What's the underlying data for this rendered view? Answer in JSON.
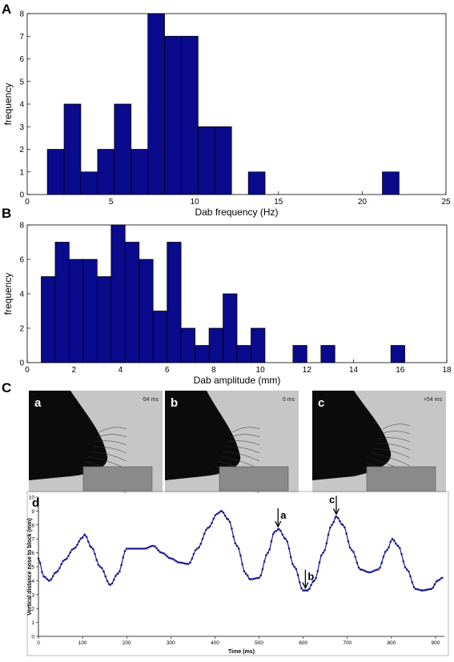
{
  "panels": {
    "A": "A",
    "B": "B",
    "C": "C",
    "d": "d"
  },
  "colors": {
    "bar": "#0a0a8c",
    "bar_edge": "#000000",
    "trace": "#1a1a90"
  },
  "chart_data": [
    {
      "type": "bar",
      "panel": "A",
      "xlabel": "Dab frequency (Hz)",
      "ylabel": "frequency",
      "xlim": [
        0,
        25
      ],
      "ylim": [
        0,
        8
      ],
      "xticks": [
        "0",
        "5",
        "10",
        "15",
        "20",
        "25"
      ],
      "yticks": [
        "0",
        "1",
        "2",
        "3",
        "4",
        "5",
        "6",
        "7",
        "8"
      ],
      "bin_width": 1.0,
      "bin_starts": [
        1.2,
        2.2,
        3.2,
        4.2,
        5.2,
        6.2,
        7.2,
        8.2,
        9.2,
        10.2,
        11.2,
        12.2,
        13.2,
        14.2,
        15.2,
        16.2,
        17.2,
        18.2,
        19.2,
        20.2,
        21.2
      ],
      "values": [
        2,
        4,
        1,
        2,
        4,
        2,
        8,
        7,
        7,
        3,
        3,
        0,
        1,
        0,
        0,
        0,
        0,
        0,
        0,
        0,
        1
      ]
    },
    {
      "type": "bar",
      "panel": "B",
      "xlabel": "Dab amplitude (mm)",
      "ylabel": "frequency",
      "xlim": [
        0,
        18
      ],
      "ylim": [
        0,
        8
      ],
      "xticks": [
        "0",
        "2",
        "4",
        "6",
        "8",
        "10",
        "12",
        "14",
        "16",
        "18"
      ],
      "yticks": [
        "0",
        "2",
        "4",
        "6",
        "8"
      ],
      "bin_width": 0.6,
      "bin_starts": [
        0.6,
        1.2,
        1.8,
        2.4,
        3.0,
        3.6,
        4.2,
        4.8,
        5.4,
        6.0,
        6.6,
        7.2,
        7.8,
        8.4,
        9.0,
        9.6,
        10.2,
        10.8,
        11.4,
        12.0,
        12.6,
        13.2,
        13.8,
        14.4,
        15.0,
        15.6
      ],
      "values": [
        5,
        7,
        6,
        6,
        5,
        8,
        7,
        6,
        3,
        7,
        2,
        1,
        2,
        4,
        1,
        2,
        0,
        0,
        1,
        0,
        1,
        0,
        0,
        0,
        0,
        1
      ]
    },
    {
      "type": "line",
      "panel": "d",
      "xlabel": "Time (ms)",
      "ylabel": "Vertical distance nose to block (mm)",
      "xlim": [
        0,
        920
      ],
      "ylim": [
        0,
        10
      ],
      "xticks": [
        "0",
        "100",
        "200",
        "300",
        "400",
        "500",
        "600",
        "700",
        "800",
        "900"
      ],
      "yticks": [
        "0",
        "1",
        "2",
        "3",
        "4",
        "5",
        "6",
        "7",
        "8",
        "9",
        "10"
      ],
      "keypoints": [
        [
          0,
          5.6
        ],
        [
          12,
          4.3
        ],
        [
          25,
          4.0
        ],
        [
          40,
          4.6
        ],
        [
          60,
          5.5
        ],
        [
          80,
          6.3
        ],
        [
          100,
          7.1
        ],
        [
          105,
          7.3
        ],
        [
          120,
          6.4
        ],
        [
          140,
          5.0
        ],
        [
          163,
          3.7
        ],
        [
          180,
          4.5
        ],
        [
          200,
          6.3
        ],
        [
          220,
          6.3
        ],
        [
          240,
          6.3
        ],
        [
          260,
          6.5
        ],
        [
          280,
          6.0
        ],
        [
          300,
          5.6
        ],
        [
          320,
          5.3
        ],
        [
          340,
          5.2
        ],
        [
          360,
          6.3
        ],
        [
          385,
          7.8
        ],
        [
          405,
          8.8
        ],
        [
          415,
          9.0
        ],
        [
          430,
          8.4
        ],
        [
          450,
          6.5
        ],
        [
          470,
          4.5
        ],
        [
          480,
          4.1
        ],
        [
          500,
          4.2
        ],
        [
          520,
          6.0
        ],
        [
          535,
          7.5
        ],
        [
          545,
          7.7
        ],
        [
          560,
          7.0
        ],
        [
          580,
          5.0
        ],
        [
          600,
          3.3
        ],
        [
          610,
          3.3
        ],
        [
          625,
          4.0
        ],
        [
          645,
          6.0
        ],
        [
          665,
          8.0
        ],
        [
          675,
          8.6
        ],
        [
          690,
          8.0
        ],
        [
          710,
          6.2
        ],
        [
          730,
          4.8
        ],
        [
          750,
          4.6
        ],
        [
          770,
          4.8
        ],
        [
          790,
          6.2
        ],
        [
          802,
          7.0
        ],
        [
          815,
          6.5
        ],
        [
          835,
          4.8
        ],
        [
          855,
          3.4
        ],
        [
          870,
          3.3
        ],
        [
          890,
          3.4
        ],
        [
          905,
          4.0
        ],
        [
          915,
          4.2
        ]
      ],
      "annotations": [
        {
          "label": "a",
          "x": 543,
          "y": 7.7
        },
        {
          "label": "b",
          "x": 605,
          "y": 3.3
        },
        {
          "label": "c",
          "x": 675,
          "y": 8.6
        }
      ]
    }
  ],
  "frames": [
    {
      "label": "a",
      "time": "-54 ms"
    },
    {
      "label": "b",
      "time": "0 ms"
    },
    {
      "label": "c",
      "time": "+54 ms"
    }
  ]
}
